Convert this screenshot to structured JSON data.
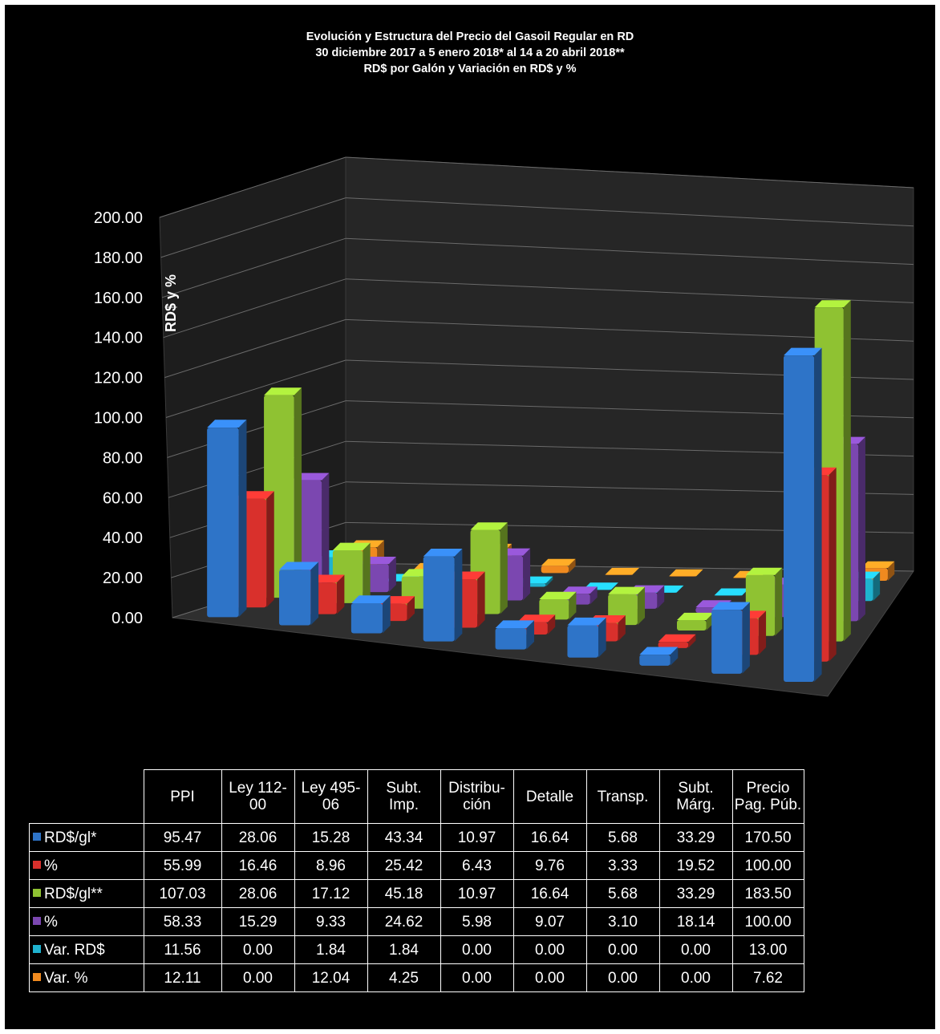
{
  "chart_data": {
    "type": "bar",
    "title": "Evolución y Estructura del Precio del Gasoil Regular en RD",
    "subtitle": [
      "30 diciembre 2017 a  5 enero 2018*  al 14 a 20 abril 2018**",
      "RD$ por Galón y Variación en RD$ y %"
    ],
    "ylabel": "RD$ y %",
    "ylim": [
      0,
      200
    ],
    "y_ticks": [
      "0.00",
      "20.00",
      "40.00",
      "60.00",
      "80.00",
      "100.00",
      "120.00",
      "140.00",
      "160.00",
      "180.00",
      "200.00"
    ],
    "grid": true,
    "legend": "data-table",
    "categories": [
      "PPI",
      "Ley 112-\n00",
      "Ley 495-\n06",
      "Subt.\nImp.",
      "Distribu-\nción",
      "Detalle",
      "Transp.",
      "Subt.\nMárg.",
      "Precio\nPag. Púb."
    ],
    "series": [
      {
        "name": "RD$/gl*",
        "color": "#2e74c8",
        "values": [
          95.47,
          28.06,
          15.28,
          43.34,
          10.97,
          16.64,
          5.68,
          33.29,
          170.5
        ],
        "labels": [
          "95.47",
          "28.06",
          "15.28",
          "43.34",
          "10.97",
          "16.64",
          "5.68",
          "33.29",
          "170.50"
        ]
      },
      {
        "name": "%",
        "color": "#d9302c",
        "values": [
          55.99,
          16.46,
          8.96,
          25.42,
          6.43,
          9.76,
          3.33,
          19.52,
          100.0
        ],
        "labels": [
          "55.99",
          "16.46",
          "8.96",
          "25.42",
          "6.43",
          "9.76",
          "3.33",
          "19.52",
          "100.00"
        ]
      },
      {
        "name": "RD$/gl**",
        "color": "#8fc232",
        "values": [
          107.03,
          28.06,
          17.12,
          45.18,
          10.97,
          16.64,
          5.68,
          33.29,
          183.5
        ],
        "labels": [
          "107.03",
          "28.06",
          "17.12",
          "45.18",
          "10.97",
          "16.64",
          "5.68",
          "33.29",
          "183.50"
        ]
      },
      {
        "name": "%",
        "color": "#7b47b0",
        "values": [
          58.33,
          15.29,
          9.33,
          24.62,
          5.98,
          9.07,
          3.1,
          18.14,
          100.0
        ],
        "labels": [
          "58.33",
          "15.29",
          "9.33",
          "24.62",
          "5.98",
          "9.07",
          "3.10",
          "18.14",
          "100.00"
        ]
      },
      {
        "name": "Var. RD$",
        "color": "#1fb2cf",
        "values": [
          11.56,
          0.0,
          1.84,
          1.84,
          0.0,
          0.0,
          0.0,
          0.0,
          13.0
        ],
        "labels": [
          "11.56",
          "0.00",
          "1.84",
          "1.84",
          "0.00",
          "0.00",
          "0.00",
          "0.00",
          "13.00"
        ]
      },
      {
        "name": "Var. %",
        "color": "#f08a1f",
        "values": [
          12.11,
          0.0,
          12.04,
          4.25,
          0.0,
          0.0,
          0.0,
          0.0,
          7.62
        ],
        "labels": [
          "12.11",
          "0.00",
          "12.04",
          "4.25",
          "0.00",
          "0.00",
          "0.00",
          "0.00",
          "7.62"
        ]
      }
    ]
  }
}
